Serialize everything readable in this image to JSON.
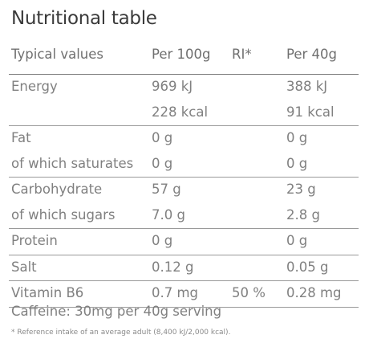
{
  "title": "Nutritional table",
  "header": {
    "col1": "Typical values",
    "col2": "Per 100g",
    "col3": "RI*",
    "col4": "Per 40g"
  },
  "rows": [
    {
      "label": "Energy",
      "per100": "969 kJ",
      "ri": "",
      "per40": "388 kJ"
    },
    {
      "label": "",
      "per100": "228 kcal",
      "ri": "",
      "per40": "91 kcal"
    },
    {
      "label": "Fat",
      "per100": "0 g",
      "ri": "",
      "per40": "0 g"
    },
    {
      "label": "of which saturates",
      "per100": "0 g",
      "ri": "",
      "per40": "0 g"
    },
    {
      "label": "Carbohydrate",
      "per100": "57 g",
      "ri": "",
      "per40": "23 g"
    },
    {
      "label": "of which sugars",
      "per100": "7.0 g",
      "ri": "",
      "per40": "2.8 g"
    },
    {
      "label": "Protein",
      "per100": "0 g",
      "ri": "",
      "per40": "0 g"
    },
    {
      "label": "Salt",
      "per100": "0.12 g",
      "ri": "",
      "per40": "0.05 g"
    },
    {
      "label": "Vitamin B6",
      "per100": "0.7 mg",
      "ri": "50 %",
      "per40": "0.28 mg"
    }
  ],
  "caffeine": "Caffeine: 30mg per 40g serving",
  "footnote": "* Reference intake of an average adult (8,400 kJ/2,000 kcal)."
}
